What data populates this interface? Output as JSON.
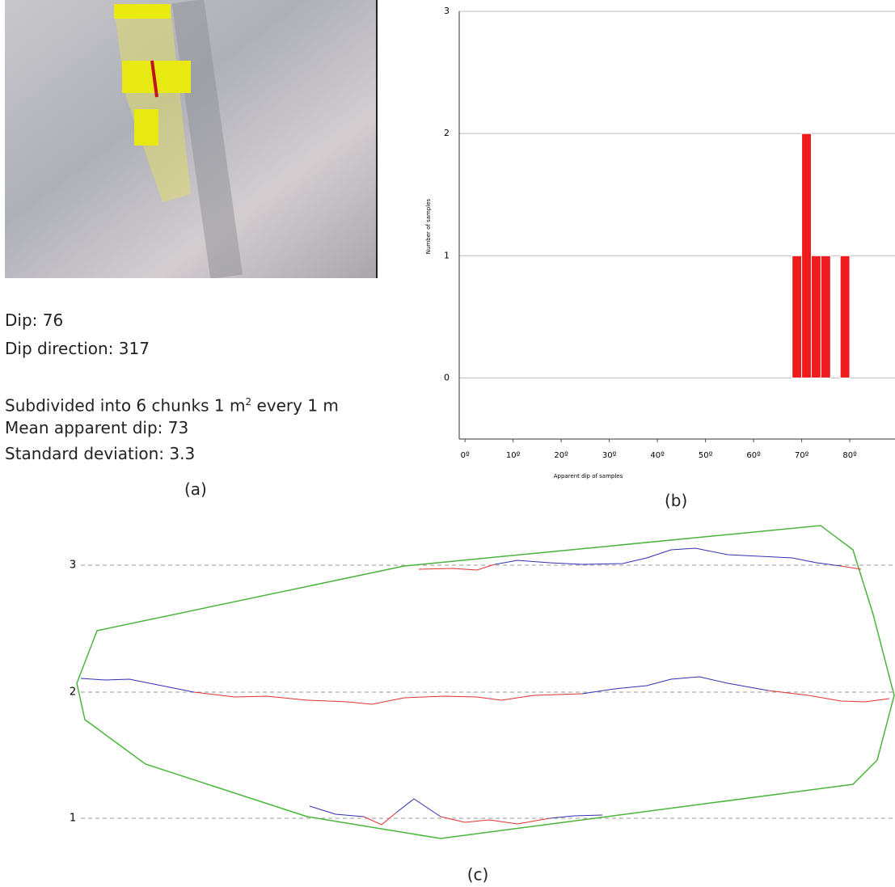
{
  "panel_a": {
    "dip": "Dip: 76",
    "dip_direction": "Dip direction: 317",
    "subdivided": {
      "text": "Subdivided into 6 chunks 1 m",
      "sup": "2",
      "rest": "every 1 m"
    },
    "mean": "Mean apparent dip: 73",
    "std": "Standard deviation: 3.3",
    "caption": "(a)"
  },
  "chart_data": {
    "type": "histogram",
    "caption": "(b)",
    "x_label": "Apparent dip of samples",
    "y_label": "Number of samples",
    "bins": [
      68,
      70,
      72,
      74,
      76,
      78,
      80
    ],
    "values": [
      1,
      2,
      1,
      1,
      0,
      1
    ],
    "color": "#ee1c1c",
    "xlim": [
      -1.2,
      89.4
    ],
    "ylim": [
      -0.5,
      3
    ],
    "xticks": [
      {
        "value": 0,
        "label": "0º"
      },
      {
        "value": 10,
        "label": "10º"
      },
      {
        "value": 20,
        "label": "20º"
      },
      {
        "value": 30,
        "label": "30º"
      },
      {
        "value": 40,
        "label": "40º"
      },
      {
        "value": 50,
        "label": "50º"
      },
      {
        "value": 60,
        "label": "60º"
      },
      {
        "value": 70,
        "label": "70º"
      },
      {
        "value": 80,
        "label": "80º"
      }
    ],
    "yticks": [
      0,
      1,
      2,
      3
    ],
    "grid": true
  },
  "panel_c": {
    "labels": [
      "3",
      "2",
      "1"
    ],
    "caption": "(c)"
  }
}
